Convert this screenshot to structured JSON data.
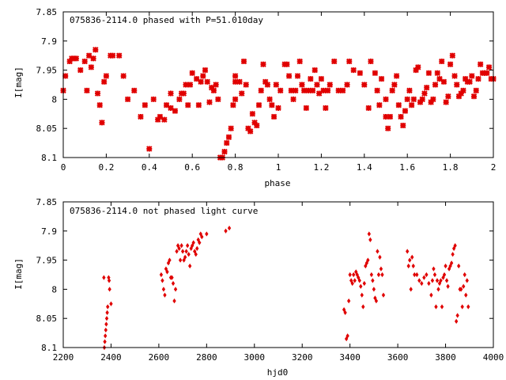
{
  "colors": {
    "points": "#e00000",
    "axis": "#000000",
    "background": "#ffffff"
  },
  "chart_data": [
    {
      "type": "scatter",
      "title": "075836-2114.0 phased with P=51.010day",
      "xlabel": "phase",
      "ylabel": "I[mag]",
      "xlim": [
        0,
        2
      ],
      "ylim": [
        7.85,
        8.1
      ],
      "y_inverted": true,
      "xticks": [
        "0",
        "0.2",
        "0.4",
        "0.6",
        "0.8",
        "1",
        "1.2",
        "1.4",
        "1.6",
        "1.8",
        "2"
      ],
      "yticks": [
        "7.85",
        "7.9",
        "7.95",
        "8",
        "8.05",
        "8.1"
      ],
      "grid": false,
      "marker": "star",
      "points": [
        [
          0.0,
          7.985
        ],
        [
          0.01,
          7.96
        ],
        [
          0.03,
          7.935
        ],
        [
          0.04,
          7.93
        ],
        [
          0.05,
          7.93
        ],
        [
          0.06,
          7.93
        ],
        [
          0.08,
          7.95
        ],
        [
          0.1,
          7.935
        ],
        [
          0.11,
          7.985
        ],
        [
          0.12,
          7.925
        ],
        [
          0.13,
          7.945
        ],
        [
          0.14,
          7.93
        ],
        [
          0.15,
          7.915
        ],
        [
          0.16,
          7.99
        ],
        [
          0.17,
          8.01
        ],
        [
          0.18,
          8.04
        ],
        [
          0.19,
          7.97
        ],
        [
          0.2,
          7.96
        ],
        [
          0.22,
          7.925
        ],
        [
          0.23,
          7.925
        ],
        [
          0.26,
          7.925
        ],
        [
          0.28,
          7.96
        ],
        [
          0.3,
          8.0
        ],
        [
          0.33,
          7.985
        ],
        [
          0.36,
          8.03
        ],
        [
          0.38,
          8.01
        ],
        [
          0.4,
          8.085
        ],
        [
          0.42,
          8.0
        ],
        [
          0.44,
          8.035
        ],
        [
          0.45,
          8.03
        ],
        [
          0.47,
          8.035
        ],
        [
          0.48,
          8.01
        ],
        [
          0.5,
          8.015
        ],
        [
          0.5,
          7.99
        ],
        [
          0.52,
          8.02
        ],
        [
          0.54,
          8.0
        ],
        [
          0.55,
          7.99
        ],
        [
          0.56,
          7.99
        ],
        [
          0.57,
          7.975
        ],
        [
          0.58,
          8.01
        ],
        [
          0.59,
          7.975
        ],
        [
          0.6,
          7.955
        ],
        [
          0.62,
          7.965
        ],
        [
          0.63,
          8.01
        ],
        [
          0.64,
          7.97
        ],
        [
          0.65,
          7.96
        ],
        [
          0.66,
          7.95
        ],
        [
          0.67,
          7.97
        ],
        [
          0.68,
          8.005
        ],
        [
          0.69,
          7.98
        ],
        [
          0.7,
          7.985
        ],
        [
          0.71,
          7.975
        ],
        [
          0.72,
          8.0
        ],
        [
          0.73,
          8.1
        ],
        [
          0.74,
          8.1
        ],
        [
          0.75,
          8.09
        ],
        [
          0.76,
          8.075
        ],
        [
          0.77,
          8.065
        ],
        [
          0.78,
          8.05
        ],
        [
          0.79,
          8.01
        ],
        [
          0.8,
          8.0
        ],
        [
          0.8,
          7.96
        ],
        [
          0.8,
          7.97
        ],
        [
          0.82,
          7.97
        ],
        [
          0.83,
          7.99
        ],
        [
          0.84,
          7.935
        ],
        [
          0.85,
          7.975
        ],
        [
          0.86,
          8.05
        ],
        [
          0.87,
          8.055
        ],
        [
          0.88,
          8.025
        ],
        [
          0.89,
          8.04
        ],
        [
          0.9,
          8.045
        ],
        [
          0.91,
          8.01
        ],
        [
          0.92,
          7.985
        ],
        [
          0.93,
          7.94
        ],
        [
          0.94,
          7.97
        ],
        [
          0.95,
          7.975
        ],
        [
          0.96,
          8.0
        ],
        [
          0.97,
          8.01
        ],
        [
          0.98,
          8.03
        ],
        [
          0.99,
          7.975
        ],
        [
          1.0,
          8.015
        ],
        [
          1.01,
          7.985
        ],
        [
          1.03,
          7.94
        ],
        [
          1.04,
          7.94
        ],
        [
          1.05,
          7.96
        ],
        [
          1.06,
          7.985
        ],
        [
          1.07,
          8.0
        ],
        [
          1.08,
          7.985
        ],
        [
          1.09,
          7.96
        ],
        [
          1.1,
          7.935
        ],
        [
          1.11,
          7.975
        ],
        [
          1.12,
          7.985
        ],
        [
          1.13,
          8.015
        ],
        [
          1.14,
          7.985
        ],
        [
          1.15,
          7.965
        ],
        [
          1.16,
          7.985
        ],
        [
          1.17,
          7.95
        ],
        [
          1.18,
          7.975
        ],
        [
          1.19,
          7.99
        ],
        [
          1.2,
          7.965
        ],
        [
          1.21,
          7.985
        ],
        [
          1.22,
          8.015
        ],
        [
          1.23,
          7.985
        ],
        [
          1.24,
          7.975
        ],
        [
          1.26,
          7.935
        ],
        [
          1.28,
          7.985
        ],
        [
          1.3,
          7.985
        ],
        [
          1.32,
          7.975
        ],
        [
          1.33,
          7.935
        ],
        [
          1.35,
          7.95
        ],
        [
          1.38,
          7.955
        ],
        [
          1.4,
          7.975
        ],
        [
          1.42,
          8.015
        ],
        [
          1.43,
          7.935
        ],
        [
          1.45,
          7.955
        ],
        [
          1.46,
          7.985
        ],
        [
          1.47,
          8.01
        ],
        [
          1.48,
          7.965
        ],
        [
          1.5,
          8.03
        ],
        [
          1.5,
          8.0
        ],
        [
          1.51,
          8.05
        ],
        [
          1.52,
          8.03
        ],
        [
          1.53,
          7.985
        ],
        [
          1.54,
          7.975
        ],
        [
          1.55,
          7.96
        ],
        [
          1.56,
          8.01
        ],
        [
          1.57,
          8.03
        ],
        [
          1.58,
          8.045
        ],
        [
          1.59,
          8.02
        ],
        [
          1.6,
          8.0
        ],
        [
          1.61,
          7.985
        ],
        [
          1.62,
          8.01
        ],
        [
          1.63,
          8.0
        ],
        [
          1.64,
          7.95
        ],
        [
          1.65,
          7.945
        ],
        [
          1.66,
          8.005
        ],
        [
          1.67,
          8.0
        ],
        [
          1.68,
          7.99
        ],
        [
          1.69,
          7.98
        ],
        [
          1.7,
          7.955
        ],
        [
          1.71,
          8.005
        ],
        [
          1.72,
          8.0
        ],
        [
          1.73,
          7.975
        ],
        [
          1.74,
          7.955
        ],
        [
          1.75,
          7.965
        ],
        [
          1.76,
          7.935
        ],
        [
          1.77,
          7.97
        ],
        [
          1.78,
          8.005
        ],
        [
          1.79,
          7.995
        ],
        [
          1.8,
          7.94
        ],
        [
          1.81,
          7.925
        ],
        [
          1.82,
          7.96
        ],
        [
          1.83,
          7.975
        ],
        [
          1.84,
          7.995
        ],
        [
          1.85,
          7.99
        ],
        [
          1.86,
          7.985
        ],
        [
          1.87,
          7.965
        ],
        [
          1.88,
          7.97
        ],
        [
          1.89,
          7.97
        ],
        [
          1.9,
          7.96
        ],
        [
          1.91,
          7.995
        ],
        [
          1.92,
          7.985
        ],
        [
          1.93,
          7.965
        ],
        [
          1.94,
          7.94
        ],
        [
          1.95,
          7.955
        ],
        [
          1.96,
          7.955
        ],
        [
          1.97,
          7.955
        ],
        [
          1.98,
          7.945
        ],
        [
          1.99,
          7.965
        ],
        [
          2.0,
          7.965
        ]
      ]
    },
    {
      "type": "scatter",
      "title": "075836-2114.0 not phased light curve",
      "xlabel": "hjd0",
      "ylabel": "I[mag]",
      "xlim": [
        2200,
        4000
      ],
      "ylim": [
        7.85,
        8.1
      ],
      "y_inverted": true,
      "xticks": [
        "2200",
        "2400",
        "2600",
        "2800",
        "3000",
        "3200",
        "3400",
        "3600",
        "3800",
        "4000"
      ],
      "yticks": [
        "7.85",
        "7.9",
        "7.95",
        "8",
        "8.05",
        "8.1"
      ],
      "grid": false,
      "marker": "diamond",
      "points": [
        [
          2370,
          7.98
        ],
        [
          2372,
          8.1
        ],
        [
          2374,
          8.09
        ],
        [
          2376,
          8.08
        ],
        [
          2378,
          8.07
        ],
        [
          2380,
          8.06
        ],
        [
          2382,
          8.05
        ],
        [
          2384,
          8.04
        ],
        [
          2386,
          8.03
        ],
        [
          2390,
          7.98
        ],
        [
          2392,
          7.985
        ],
        [
          2394,
          8.0
        ],
        [
          2400,
          8.025
        ],
        [
          2610,
          7.975
        ],
        [
          2615,
          7.985
        ],
        [
          2620,
          8.0
        ],
        [
          2625,
          8.01
        ],
        [
          2630,
          7.965
        ],
        [
          2635,
          7.97
        ],
        [
          2640,
          7.955
        ],
        [
          2645,
          7.95
        ],
        [
          2650,
          7.98
        ],
        [
          2655,
          7.98
        ],
        [
          2660,
          7.99
        ],
        [
          2665,
          8.02
        ],
        [
          2670,
          8.0
        ],
        [
          2675,
          7.935
        ],
        [
          2680,
          7.925
        ],
        [
          2685,
          7.93
        ],
        [
          2690,
          7.95
        ],
        [
          2695,
          7.925
        ],
        [
          2700,
          7.935
        ],
        [
          2705,
          7.95
        ],
        [
          2710,
          7.945
        ],
        [
          2715,
          7.935
        ],
        [
          2720,
          7.925
        ],
        [
          2725,
          7.94
        ],
        [
          2730,
          7.96
        ],
        [
          2735,
          7.93
        ],
        [
          2740,
          7.925
        ],
        [
          2745,
          7.92
        ],
        [
          2750,
          7.935
        ],
        [
          2755,
          7.94
        ],
        [
          2760,
          7.93
        ],
        [
          2765,
          7.915
        ],
        [
          2770,
          7.92
        ],
        [
          2775,
          7.905
        ],
        [
          2780,
          7.91
        ],
        [
          2800,
          7.905
        ],
        [
          2880,
          7.9
        ],
        [
          2895,
          7.895
        ],
        [
          3375,
          8.035
        ],
        [
          3380,
          8.04
        ],
        [
          3385,
          8.085
        ],
        [
          3390,
          8.08
        ],
        [
          3395,
          8.02
        ],
        [
          3400,
          7.975
        ],
        [
          3405,
          7.985
        ],
        [
          3410,
          7.99
        ],
        [
          3415,
          7.975
        ],
        [
          3420,
          7.985
        ],
        [
          3425,
          7.97
        ],
        [
          3430,
          7.975
        ],
        [
          3435,
          7.98
        ],
        [
          3440,
          7.985
        ],
        [
          3445,
          7.995
        ],
        [
          3450,
          8.01
        ],
        [
          3455,
          8.03
        ],
        [
          3460,
          7.99
        ],
        [
          3465,
          7.96
        ],
        [
          3470,
          7.955
        ],
        [
          3475,
          7.95
        ],
        [
          3480,
          7.905
        ],
        [
          3485,
          7.915
        ],
        [
          3490,
          7.975
        ],
        [
          3495,
          7.985
        ],
        [
          3500,
          8.0
        ],
        [
          3505,
          8.015
        ],
        [
          3510,
          8.02
        ],
        [
          3515,
          7.935
        ],
        [
          3520,
          7.975
        ],
        [
          3525,
          7.945
        ],
        [
          3530,
          7.965
        ],
        [
          3535,
          7.975
        ],
        [
          3540,
          8.01
        ],
        [
          3640,
          7.935
        ],
        [
          3645,
          7.96
        ],
        [
          3650,
          7.95
        ],
        [
          3655,
          8.0
        ],
        [
          3660,
          7.945
        ],
        [
          3665,
          7.96
        ],
        [
          3670,
          7.975
        ],
        [
          3680,
          7.975
        ],
        [
          3690,
          7.985
        ],
        [
          3700,
          7.99
        ],
        [
          3710,
          7.98
        ],
        [
          3720,
          7.975
        ],
        [
          3730,
          7.99
        ],
        [
          3740,
          8.01
        ],
        [
          3745,
          7.985
        ],
        [
          3750,
          7.965
        ],
        [
          3755,
          7.975
        ],
        [
          3760,
          8.03
        ],
        [
          3765,
          7.985
        ],
        [
          3770,
          8.0
        ],
        [
          3775,
          7.99
        ],
        [
          3780,
          7.985
        ],
        [
          3785,
          8.03
        ],
        [
          3790,
          7.98
        ],
        [
          3795,
          7.975
        ],
        [
          3800,
          7.96
        ],
        [
          3805,
          7.985
        ],
        [
          3810,
          7.995
        ],
        [
          3815,
          7.965
        ],
        [
          3820,
          7.96
        ],
        [
          3825,
          7.955
        ],
        [
          3830,
          7.94
        ],
        [
          3835,
          7.93
        ],
        [
          3840,
          7.925
        ],
        [
          3845,
          8.055
        ],
        [
          3850,
          8.045
        ],
        [
          3855,
          7.96
        ],
        [
          3860,
          8.0
        ],
        [
          3865,
          8.0
        ],
        [
          3870,
          8.03
        ],
        [
          3875,
          7.995
        ],
        [
          3880,
          7.975
        ],
        [
          3885,
          8.01
        ],
        [
          3890,
          7.985
        ],
        [
          3895,
          8.03
        ]
      ]
    }
  ]
}
